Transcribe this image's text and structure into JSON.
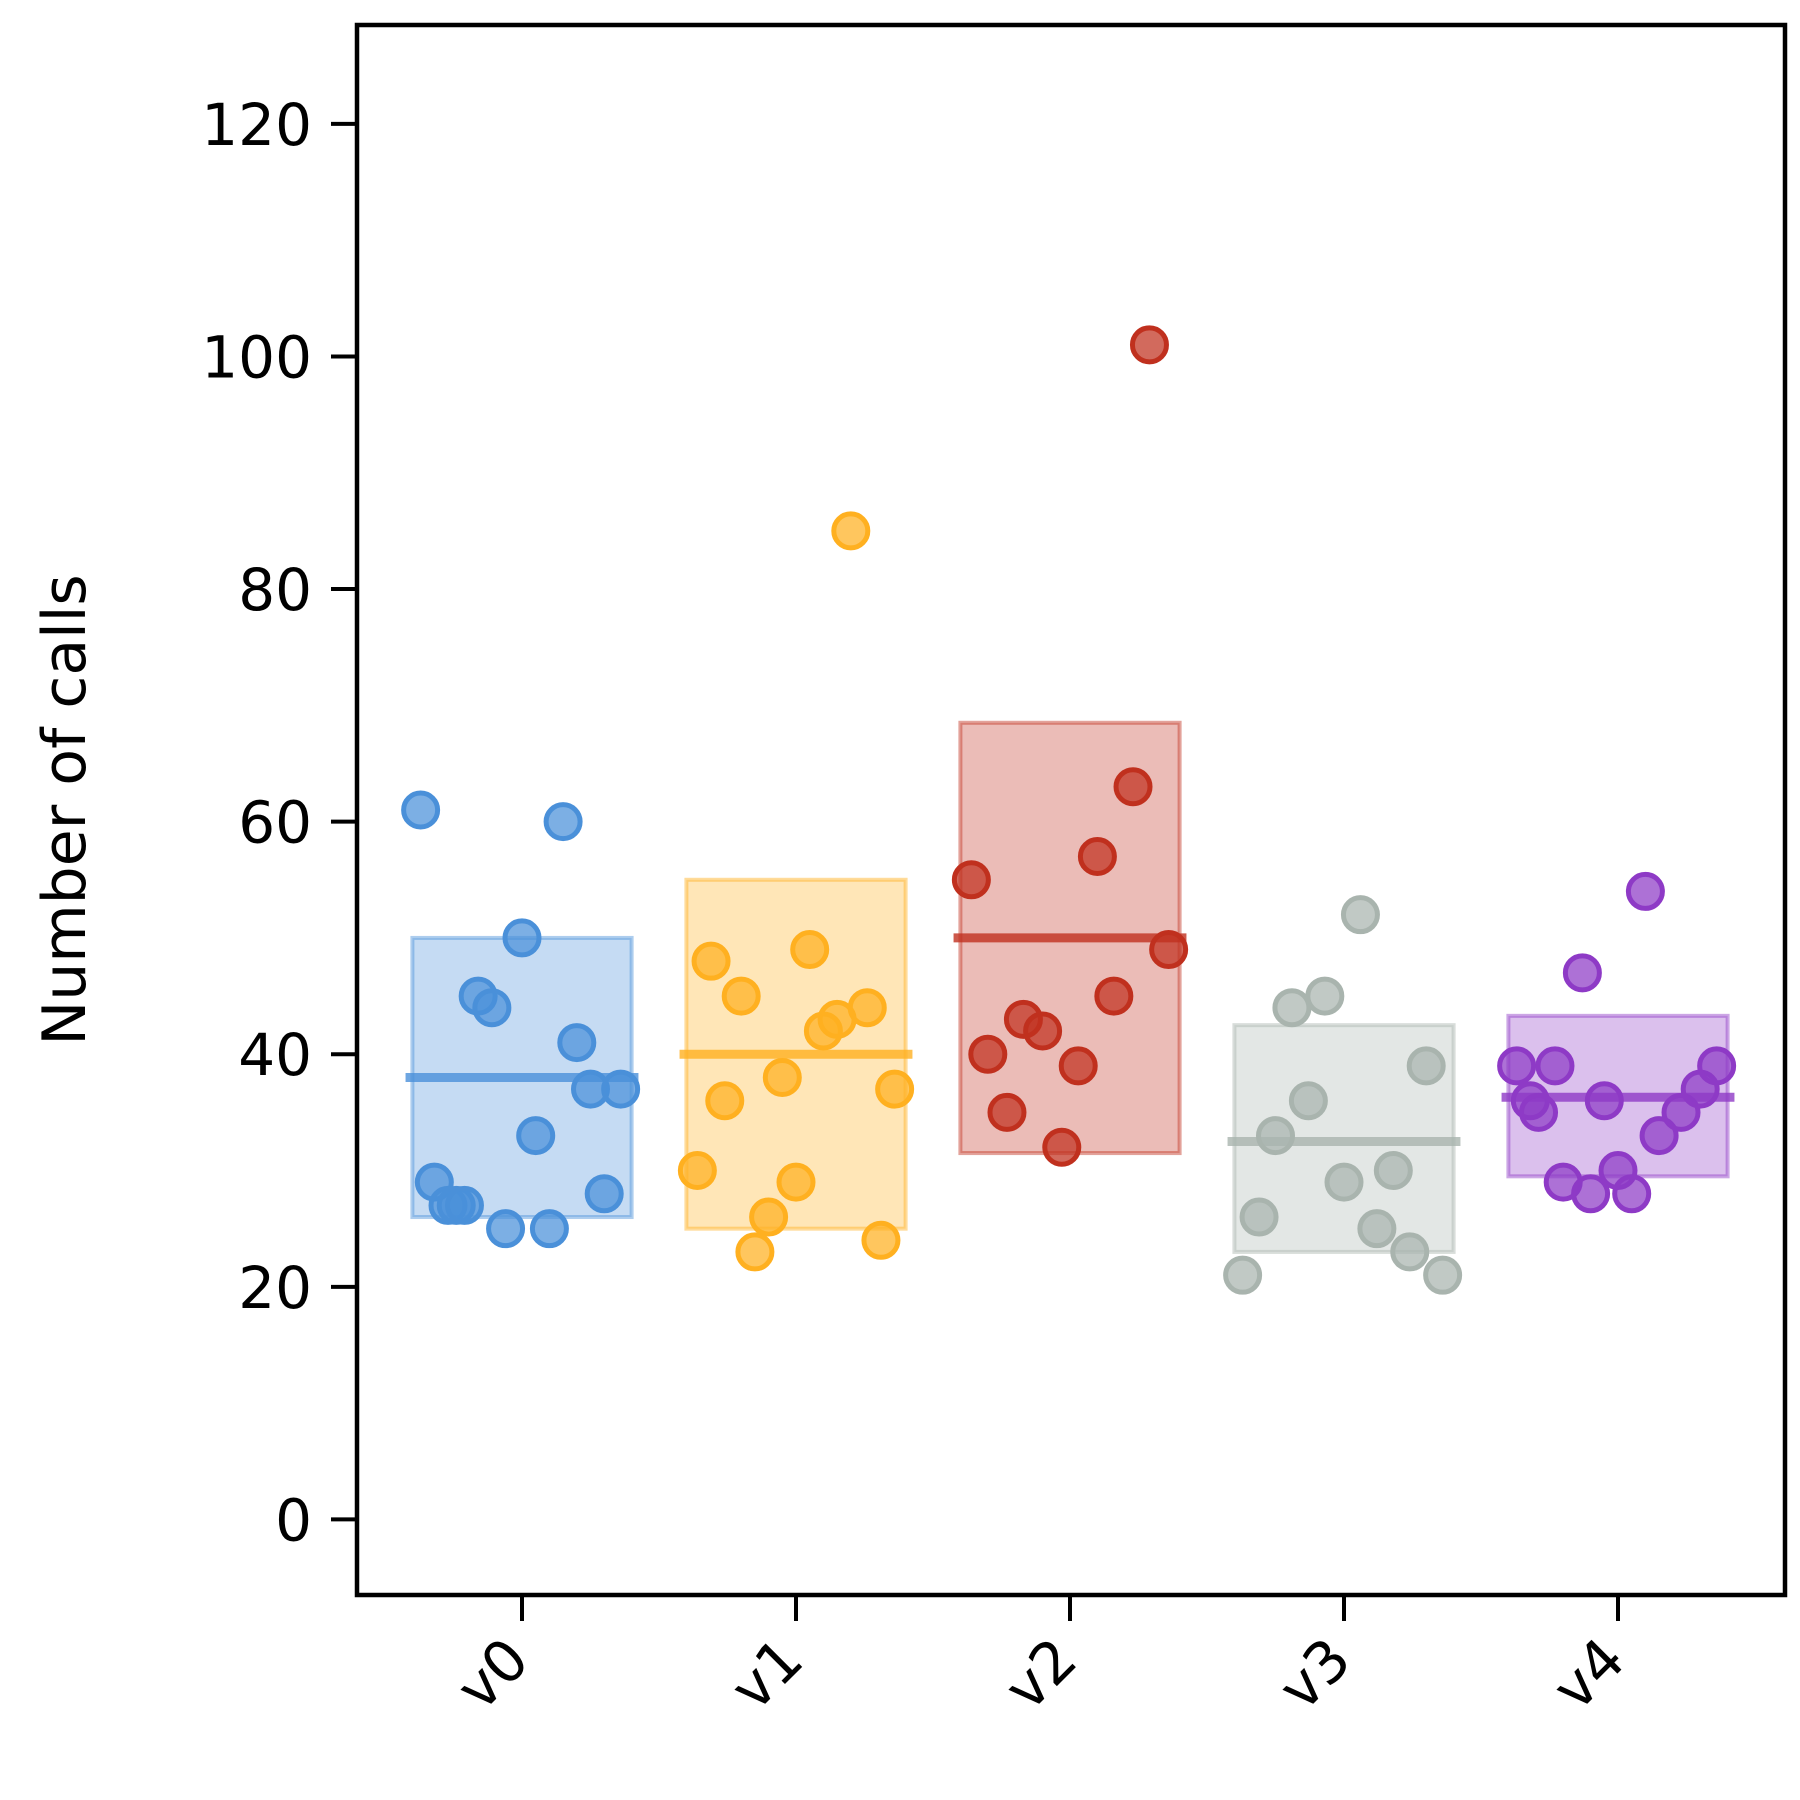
{
  "chart_data": {
    "type": "scatter",
    "ylabel": "Number of calls",
    "xlabel": "",
    "ylim": [
      -6.5,
      128.5
    ],
    "yticks": [
      0,
      20,
      40,
      60,
      80,
      100,
      120
    ],
    "categories": [
      "v0",
      "v1",
      "v2",
      "v3",
      "v4"
    ],
    "grid": false,
    "series": [
      {
        "category": "v0",
        "color": "#4a90d9",
        "mean": 38,
        "box": [
          26,
          50
        ],
        "points": [
          {
            "x": -0.37,
            "y": 61
          },
          {
            "x": -0.32,
            "y": 29
          },
          {
            "x": -0.27,
            "y": 27
          },
          {
            "x": -0.24,
            "y": 27
          },
          {
            "x": -0.21,
            "y": 27
          },
          {
            "x": -0.16,
            "y": 45
          },
          {
            "x": -0.11,
            "y": 44
          },
          {
            "x": -0.06,
            "y": 25
          },
          {
            "x": 0.0,
            "y": 50
          },
          {
            "x": 0.05,
            "y": 33
          },
          {
            "x": 0.1,
            "y": 25
          },
          {
            "x": 0.15,
            "y": 60
          },
          {
            "x": 0.2,
            "y": 41
          },
          {
            "x": 0.25,
            "y": 37
          },
          {
            "x": 0.3,
            "y": 28
          },
          {
            "x": 0.36,
            "y": 37
          }
        ]
      },
      {
        "category": "v1",
        "color": "#ffb020",
        "mean": 40,
        "box": [
          25,
          55
        ],
        "points": [
          {
            "x": -0.36,
            "y": 30
          },
          {
            "x": -0.31,
            "y": 48
          },
          {
            "x": -0.26,
            "y": 36
          },
          {
            "x": -0.2,
            "y": 45
          },
          {
            "x": -0.15,
            "y": 23
          },
          {
            "x": -0.1,
            "y": 26
          },
          {
            "x": -0.05,
            "y": 38
          },
          {
            "x": 0.0,
            "y": 29
          },
          {
            "x": 0.05,
            "y": 49
          },
          {
            "x": 0.1,
            "y": 42
          },
          {
            "x": 0.15,
            "y": 43
          },
          {
            "x": 0.2,
            "y": 85
          },
          {
            "x": 0.26,
            "y": 44
          },
          {
            "x": 0.31,
            "y": 24
          },
          {
            "x": 0.36,
            "y": 37
          }
        ]
      },
      {
        "category": "v2",
        "color": "#c0301e",
        "mean": 50,
        "box": [
          31.5,
          68.5
        ],
        "points": [
          {
            "x": -0.36,
            "y": 55
          },
          {
            "x": -0.3,
            "y": 40
          },
          {
            "x": -0.23,
            "y": 35
          },
          {
            "x": -0.17,
            "y": 43
          },
          {
            "x": -0.1,
            "y": 42
          },
          {
            "x": -0.03,
            "y": 32
          },
          {
            "x": 0.03,
            "y": 39
          },
          {
            "x": 0.1,
            "y": 57
          },
          {
            "x": 0.16,
            "y": 45
          },
          {
            "x": 0.23,
            "y": 63
          },
          {
            "x": 0.29,
            "y": 101
          },
          {
            "x": 0.36,
            "y": 49
          }
        ]
      },
      {
        "category": "v3",
        "color": "#a9b4ae",
        "mean": 32.5,
        "box": [
          23,
          42.5
        ],
        "points": [
          {
            "x": -0.37,
            "y": 21
          },
          {
            "x": -0.31,
            "y": 26
          },
          {
            "x": -0.25,
            "y": 33
          },
          {
            "x": -0.19,
            "y": 44
          },
          {
            "x": -0.13,
            "y": 36
          },
          {
            "x": -0.07,
            "y": 45
          },
          {
            "x": 0.0,
            "y": 29
          },
          {
            "x": 0.06,
            "y": 52
          },
          {
            "x": 0.12,
            "y": 25
          },
          {
            "x": 0.18,
            "y": 30
          },
          {
            "x": 0.24,
            "y": 23
          },
          {
            "x": 0.3,
            "y": 39
          },
          {
            "x": 0.36,
            "y": 21
          }
        ]
      },
      {
        "category": "v4",
        "color": "#8e3ac6",
        "mean": 36.3,
        "box": [
          29.5,
          43.3
        ],
        "points": [
          {
            "x": -0.37,
            "y": 39
          },
          {
            "x": -0.32,
            "y": 36
          },
          {
            "x": -0.29,
            "y": 35
          },
          {
            "x": -0.23,
            "y": 39
          },
          {
            "x": -0.2,
            "y": 29
          },
          {
            "x": -0.13,
            "y": 47
          },
          {
            "x": -0.1,
            "y": 28
          },
          {
            "x": -0.05,
            "y": 36
          },
          {
            "x": 0.0,
            "y": 30
          },
          {
            "x": 0.05,
            "y": 28
          },
          {
            "x": 0.1,
            "y": 54
          },
          {
            "x": 0.15,
            "y": 33
          },
          {
            "x": 0.23,
            "y": 35
          },
          {
            "x": 0.3,
            "y": 37
          },
          {
            "x": 0.36,
            "y": 39
          }
        ]
      }
    ]
  }
}
